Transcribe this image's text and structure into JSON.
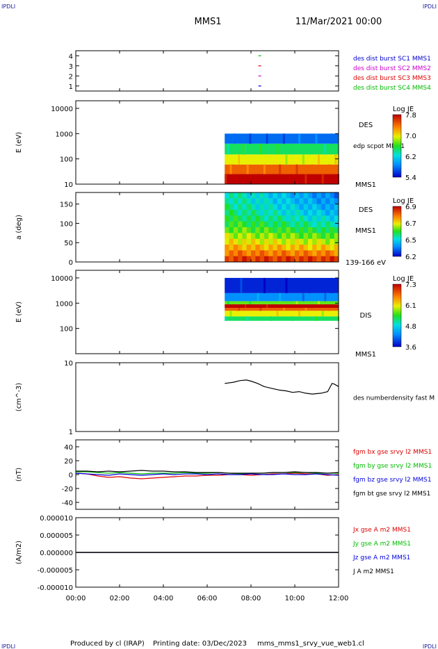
{
  "header": {
    "corner_left": "IPDLI",
    "corner_right": "IPDLI",
    "title": "MMS1",
    "datetime": "11/Mar/2021 00:00"
  },
  "footer": {
    "produced_by": "Produced by cl (IRAP)",
    "printing_date": "Printing date: 03/Dec/2023",
    "filename": "mms_mms1_srvy_vue_web1.cl",
    "corner_left": "IPDLI",
    "corner_right": "IPDLI"
  },
  "time_axis": {
    "ticks": [
      "00:00",
      "02:00",
      "04:00",
      "06:00",
      "08:00",
      "10:00",
      "12:00"
    ]
  },
  "chart_data": [
    {
      "type": "scatter",
      "panel": "burst",
      "xlim": [
        0,
        12
      ],
      "ylim": [
        0.5,
        4.5
      ],
      "yticks": [
        "1",
        "2",
        "3",
        "4"
      ],
      "legend": [
        {
          "label": "des dist burst SC1 MMS1",
          "color": "#0000cc"
        },
        {
          "label": "des dist burst SC2 MMS2",
          "color": "#cc00cc"
        },
        {
          "label": "des dist burst SC3 MMS3",
          "color": "#dd0000"
        },
        {
          "label": "des dist burst SC4 MMS4",
          "color": "#00bb00"
        }
      ],
      "series": [
        {
          "x": [
            8.4
          ],
          "y": [
            1
          ]
        },
        {
          "x": [
            8.4
          ],
          "y": [
            2
          ]
        },
        {
          "x": [
            8.4
          ],
          "y": [
            3
          ]
        },
        {
          "x": [
            8.4
          ],
          "y": [
            4
          ]
        }
      ]
    },
    {
      "type": "heatmap",
      "panel": "des_energy",
      "ylabel": "E (eV)",
      "scale": "log",
      "ylim": [
        10,
        20000
      ],
      "yticks": [
        "10",
        "100",
        "1000",
        "10000"
      ],
      "data_start": 6.8,
      "data_end": 12,
      "label_right": "DES",
      "label_sub": "edp scpot MMS1",
      "label_bottom": "MMS1",
      "colorbar": {
        "title": "Log JE",
        "ticks": [
          "7.8",
          "7.0",
          "6.2",
          "5.4"
        ]
      },
      "bands": [
        {
          "from": 10,
          "to": 25,
          "level": 1.0
        },
        {
          "from": 25,
          "to": 60,
          "level": 0.85
        },
        {
          "from": 60,
          "to": 150,
          "level": 0.65
        },
        {
          "from": 150,
          "to": 400,
          "level": 0.45
        },
        {
          "from": 400,
          "to": 1000,
          "level": 0.15
        }
      ]
    },
    {
      "type": "heatmap",
      "panel": "des_pitch",
      "ylabel": "a (deg)",
      "ylim": [
        0,
        180
      ],
      "yticks": [
        "0",
        "50",
        "100",
        "150"
      ],
      "data_start": 6.8,
      "data_end": 12,
      "label_right": "DES",
      "label_sub": "MMS1",
      "label_bottom": "139-166 eV",
      "colorbar": {
        "title": "Log JE",
        "ticks": [
          "6.9",
          "6.7",
          "6.5",
          "6.2"
        ]
      }
    },
    {
      "type": "heatmap",
      "panel": "dis_energy",
      "ylabel": "E (eV)",
      "scale": "log",
      "ylim": [
        10,
        20000
      ],
      "yticks": [
        "100",
        "1000",
        "10000"
      ],
      "data_start": 6.8,
      "data_end": 12,
      "label_right": "DIS",
      "label_bottom": "MMS1",
      "colorbar": {
        "title": "Log JE",
        "ticks": [
          "7.3",
          "6.1",
          "4.8",
          "3.6"
        ]
      },
      "bands": [
        {
          "from": 200,
          "to": 300,
          "level": 0.45
        },
        {
          "from": 300,
          "to": 500,
          "level": 0.65
        },
        {
          "from": 500,
          "to": 650,
          "level": 0.85
        },
        {
          "from": 650,
          "to": 900,
          "level": 1.0
        },
        {
          "from": 900,
          "to": 1200,
          "level": 0.55
        },
        {
          "from": 1200,
          "to": 2500,
          "level": 0.2
        },
        {
          "from": 2500,
          "to": 10000,
          "level": 0.05
        }
      ]
    },
    {
      "type": "line",
      "panel": "density",
      "ylabel": "(cm^-3)",
      "scale": "log",
      "ylim": [
        1,
        10
      ],
      "yticks": [
        "1",
        "10"
      ],
      "series": [
        {
          "name": "des numberdensity fast M",
          "color": "#000000",
          "x": [
            6.8,
            7.2,
            7.5,
            7.8,
            8.0,
            8.3,
            8.6,
            9.0,
            9.3,
            9.6,
            9.9,
            10.2,
            10.5,
            10.8,
            11.0,
            11.2,
            11.5,
            11.7,
            11.8,
            12.0
          ],
          "y": [
            5.0,
            5.2,
            5.5,
            5.6,
            5.4,
            5.0,
            4.5,
            4.2,
            4.0,
            3.9,
            3.7,
            3.8,
            3.6,
            3.5,
            3.55,
            3.6,
            3.8,
            5.0,
            4.9,
            4.5
          ]
        }
      ]
    },
    {
      "type": "line",
      "panel": "fgm",
      "ylabel": "(nT)",
      "ylim": [
        -50,
        50
      ],
      "yticks": [
        "-40",
        "-20",
        "0",
        "20",
        "40"
      ],
      "x": [
        0,
        0.5,
        1,
        1.5,
        2,
        2.5,
        3,
        3.5,
        4,
        4.5,
        5,
        5.5,
        6,
        6.5,
        7,
        7.5,
        8,
        8.5,
        9,
        9.5,
        10,
        10.5,
        11,
        11.5,
        12
      ],
      "series": [
        {
          "name": "fgm bx gse srvy l2 MMS1",
          "color": "#dd0000",
          "values": [
            2,
            1,
            -2,
            -4,
            -3,
            -5,
            -6,
            -5,
            -4,
            -3,
            -2,
            -2,
            -1,
            -1,
            0,
            0,
            -1,
            0,
            1,
            1,
            2,
            1,
            1,
            -1,
            0
          ]
        },
        {
          "name": "fgm by gse srvy l2 MMS1",
          "color": "#00bb00",
          "values": [
            4,
            4,
            3,
            2,
            3,
            2,
            1,
            2,
            2,
            2,
            3,
            2,
            2,
            3,
            2,
            1,
            2,
            2,
            3,
            3,
            3,
            3,
            2,
            2,
            2
          ]
        },
        {
          "name": "fgm bz gse srvy l2 MMS1",
          "color": "#0000dd",
          "values": [
            2,
            1,
            0,
            -1,
            1,
            0,
            -1,
            0,
            1,
            0,
            1,
            1,
            0,
            1,
            0,
            0,
            1,
            0,
            0,
            1,
            0,
            0,
            1,
            0,
            -1
          ]
        },
        {
          "name": "fgm bt gse srvy l2 MMS1",
          "color": "#000000",
          "values": [
            5,
            5,
            4,
            5,
            4,
            5,
            6,
            5,
            5,
            4,
            4,
            3,
            3,
            3,
            2,
            2,
            2,
            2,
            3,
            3,
            4,
            3,
            3,
            2,
            3
          ]
        }
      ]
    },
    {
      "type": "line",
      "panel": "current",
      "ylabel": "(A/m2)",
      "ylim": [
        -1e-05,
        1e-05
      ],
      "yticks": [
        "-0.000010",
        "-0.000005",
        "0.000000",
        "0.000005",
        "0.000010"
      ],
      "x": [
        0,
        12
      ],
      "series": [
        {
          "name": "Jx gse A m2 MMS1",
          "color": "#dd0000",
          "values": [
            0,
            0
          ]
        },
        {
          "name": "Jy gse A m2 MMS1",
          "color": "#00bb00",
          "values": [
            0,
            0
          ]
        },
        {
          "name": "Jz gse A m2 MMS1",
          "color": "#0000dd",
          "values": [
            0,
            0
          ]
        },
        {
          "name": "J A m2 MMS1",
          "color": "#000000",
          "values": [
            0,
            0
          ]
        }
      ]
    }
  ]
}
